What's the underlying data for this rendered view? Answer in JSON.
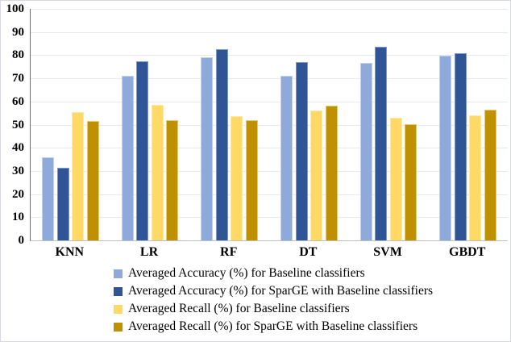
{
  "figure": {
    "background": "#ffffff",
    "border_color": "#d6d9e3",
    "gridline_color": "#e9e9ec",
    "axis_line_color": "#6b6b6b",
    "baseline_color": "#bfbfbf"
  },
  "chart_data": {
    "type": "bar",
    "title": "",
    "xlabel": "",
    "ylabel": "",
    "categories": [
      "KNN",
      "LR",
      "RF",
      "DT",
      "SVM",
      "GBDT"
    ],
    "series": [
      {
        "name": "Averaged Accuracy (%) for Baseline classifiers",
        "color": "#8EAADB",
        "border_color": "#c3d0ec",
        "values": [
          36,
          71,
          79,
          71,
          76.5,
          79.8
        ]
      },
      {
        "name": "Averaged Accuracy (%) for SparGE with Baseline classifiers",
        "color": "#2F5597",
        "border_color": "#7档c9",
        "values": [
          31.5,
          77.5,
          82.5,
          77,
          83.5,
          81
        ]
      },
      {
        "name": "Averaged Recall (%) for Baseline classifiers",
        "color": "#FFD966",
        "border_color": "#ffe9a6",
        "values": [
          55.5,
          58.5,
          53.5,
          56,
          53,
          54
        ]
      },
      {
        "name": "Averaged Recall (%) for SparGE with Baseline classifiers",
        "color": "#BF9000",
        "border_color": "#e6cb6e",
        "values": [
          51.5,
          52,
          52,
          58.3,
          50.3,
          56.5
        ]
      }
    ],
    "ylim": [
      0,
      100
    ],
    "y_ticks": [
      0,
      10,
      20,
      30,
      40,
      50,
      60,
      70,
      80,
      90,
      100
    ],
    "grid": true,
    "legend_position": "bottom-left"
  }
}
